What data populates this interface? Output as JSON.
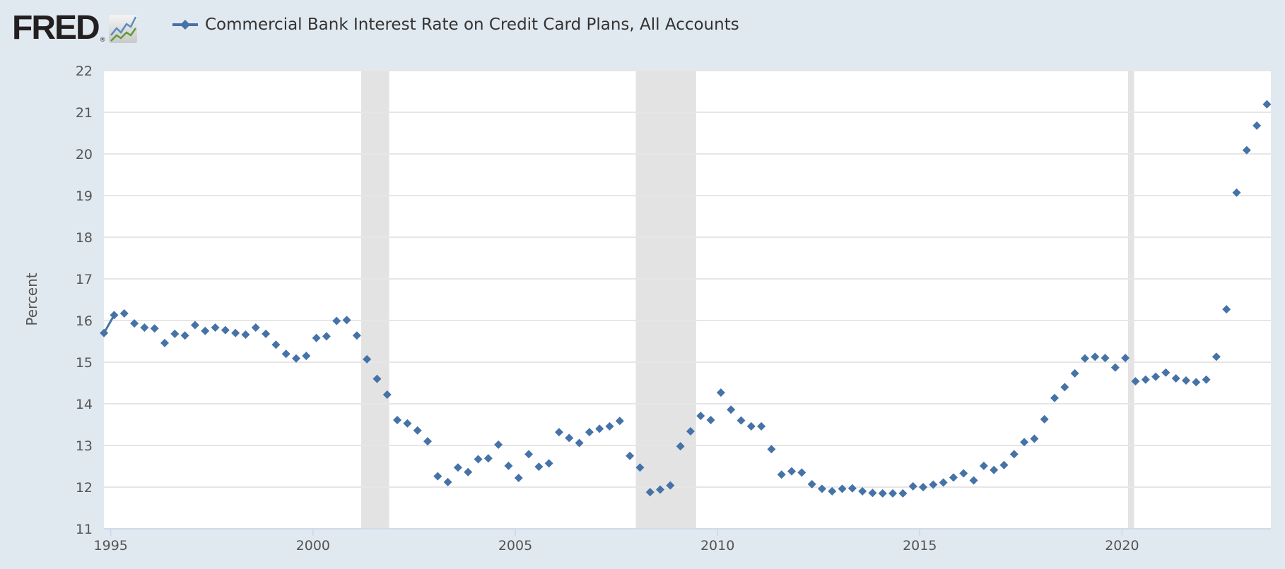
{
  "header": {
    "logo_text": "FRED",
    "logo_registered": "®",
    "legend_label": "Commercial Bank Interest Rate on Credit Card Plans, All Accounts"
  },
  "colors": {
    "series": "#4572a7",
    "background": "#e1e9f0",
    "recession": "#e3e3e3",
    "grid": "#e6e6e6"
  },
  "chart_data": {
    "type": "scatter",
    "title": "Commercial Bank Interest Rate on Credit Card Plans, All Accounts",
    "xlabel": "",
    "ylabel": "Percent",
    "frequency": "quarterly",
    "start": "1994-11",
    "start_decimal_year": 1994.833,
    "step_years": 0.25,
    "values": [
      15.7,
      16.13,
      16.17,
      15.93,
      15.83,
      15.81,
      15.46,
      15.68,
      15.64,
      15.89,
      15.75,
      15.83,
      15.77,
      15.7,
      15.66,
      15.83,
      15.68,
      15.42,
      15.2,
      15.09,
      15.15,
      15.58,
      15.62,
      15.99,
      16.01,
      15.64,
      15.07,
      14.6,
      14.22,
      13.61,
      13.53,
      13.36,
      13.1,
      12.26,
      12.12,
      12.47,
      12.36,
      12.67,
      12.69,
      13.02,
      12.51,
      12.22,
      12.79,
      12.49,
      12.57,
      13.32,
      13.18,
      13.06,
      13.32,
      13.4,
      13.46,
      13.59,
      12.75,
      12.47,
      11.88,
      11.94,
      12.04,
      12.98,
      13.34,
      13.71,
      13.61,
      14.27,
      13.86,
      13.6,
      13.46,
      13.46,
      12.91,
      12.3,
      12.38,
      12.35,
      12.07,
      11.96,
      11.9,
      11.96,
      11.97,
      11.9,
      11.86,
      11.85,
      11.85,
      11.85,
      12.02,
      12.0,
      12.06,
      12.11,
      12.23,
      12.33,
      12.16,
      12.51,
      12.41,
      12.53,
      12.79,
      13.08,
      13.16,
      13.63,
      14.14,
      14.4,
      14.73,
      15.09,
      15.13,
      15.1,
      14.87,
      15.1,
      14.54,
      14.58,
      14.65,
      14.75,
      14.61,
      14.56,
      14.52,
      14.58,
      15.13,
      16.27,
      19.07,
      20.09,
      20.68,
      21.19
    ],
    "xlim": [
      1994.83,
      2023.68
    ],
    "ylim": [
      11,
      22
    ],
    "x_ticks": [
      "1995",
      "2000",
      "2005",
      "2010",
      "2015",
      "2020"
    ],
    "y_ticks": [
      "11",
      "12",
      "13",
      "14",
      "15",
      "16",
      "17",
      "18",
      "19",
      "20",
      "21",
      "22"
    ],
    "recessions": [
      [
        2001.19,
        2001.88
      ],
      [
        2007.98,
        2009.47
      ],
      [
        2020.15,
        2020.3
      ]
    ],
    "grid": true,
    "legend_position": "top-left"
  }
}
